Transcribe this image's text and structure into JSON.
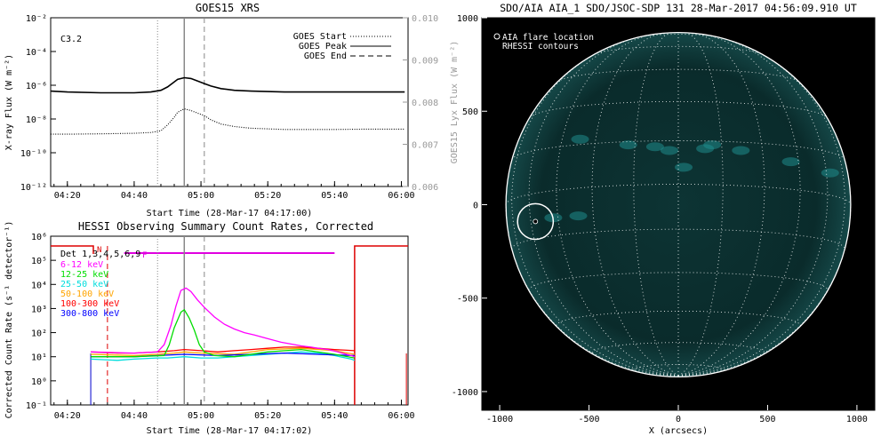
{
  "chart_data": [
    {
      "type": "line",
      "title": "GOES15 XRS",
      "xlabel": "Start Time (28-Mar-17 04:17:00)",
      "ylabel": "X-ray Flux (W m⁻²)",
      "ylabel_right": "GOES15 Lyx Flux (W m⁻²)",
      "annotation": "C3.2",
      "x_ticks": [
        "04:20",
        "04:40",
        "05:00",
        "05:20",
        "05:40",
        "06:00"
      ],
      "y_ticks": [
        "10⁻²",
        "10⁻⁴",
        "10⁻⁶",
        "10⁻⁸",
        "10⁻¹⁰",
        "10⁻¹²"
      ],
      "y_ticks_right": [
        "0.010",
        "0.009",
        "0.008",
        "0.007",
        "0.006"
      ],
      "yscale": "log",
      "ylim_exp": [
        -12,
        -2
      ],
      "xlim_min": [
        15,
        122
      ],
      "ylim_right": [
        0.006,
        0.01
      ],
      "legend": [
        {
          "label": "GOES Start",
          "style": "dotted"
        },
        {
          "label": "GOES Peak",
          "style": "solid"
        },
        {
          "label": "GOES End",
          "style": "dashed"
        }
      ],
      "event_lines_min": {
        "start": 47,
        "peak": 55,
        "end": 61
      },
      "series": [
        {
          "style": "solid",
          "log_values": [
            [
              15,
              -6.35
            ],
            [
              20,
              -6.4
            ],
            [
              30,
              -6.45
            ],
            [
              40,
              -6.45
            ],
            [
              45,
              -6.4
            ],
            [
              48,
              -6.3
            ],
            [
              50,
              -6.1
            ],
            [
              52,
              -5.8
            ],
            [
              53,
              -5.65
            ],
            [
              55,
              -5.55
            ],
            [
              57,
              -5.6
            ],
            [
              59,
              -5.75
            ],
            [
              61,
              -5.9
            ],
            [
              63,
              -6.05
            ],
            [
              66,
              -6.2
            ],
            [
              70,
              -6.3
            ],
            [
              75,
              -6.35
            ],
            [
              85,
              -6.4
            ],
            [
              100,
              -6.4
            ],
            [
              110,
              -6.4
            ],
            [
              121,
              -6.4
            ]
          ]
        },
        {
          "style": "dotted",
          "log_values": [
            [
              15,
              -8.9
            ],
            [
              20,
              -8.9
            ],
            [
              30,
              -8.88
            ],
            [
              40,
              -8.85
            ],
            [
              45,
              -8.8
            ],
            [
              48,
              -8.7
            ],
            [
              50,
              -8.35
            ],
            [
              52,
              -7.9
            ],
            [
              53,
              -7.6
            ],
            [
              55,
              -7.4
            ],
            [
              57,
              -7.5
            ],
            [
              59,
              -7.65
            ],
            [
              61,
              -7.8
            ],
            [
              63,
              -8.05
            ],
            [
              66,
              -8.3
            ],
            [
              70,
              -8.45
            ],
            [
              75,
              -8.55
            ],
            [
              85,
              -8.62
            ],
            [
              100,
              -8.62
            ],
            [
              110,
              -8.6
            ],
            [
              121,
              -8.6
            ]
          ]
        }
      ]
    },
    {
      "type": "line",
      "title": "HESSI Observing Summary Count Rates, Corrected",
      "xlabel": "Start Time (28-Mar-17 04:17:02)",
      "ylabel": "Corrected Count Rate (s⁻¹ detector⁻¹)",
      "x_ticks": [
        "04:20",
        "04:40",
        "05:00",
        "05:20",
        "05:40",
        "06:00"
      ],
      "y_ticks": [
        "10⁶",
        "10⁵",
        "10⁴",
        "10³",
        "10²",
        "10¹",
        "10⁰",
        "10⁻¹"
      ],
      "yscale": "log",
      "ylim_exp": [
        -1,
        6
      ],
      "xlim_min": [
        15,
        122
      ],
      "legend_title": "Det 1,3,4,5,6,9",
      "flag_labels": {
        "night": "N",
        "flare": "F"
      },
      "event_lines_min": {
        "start": 47,
        "peak": 55,
        "end": 61
      },
      "series": [
        {
          "name": "6-12 keV",
          "color": "#ff00ff",
          "log_values": [
            [
              27,
              1.2
            ],
            [
              40,
              1.15
            ],
            [
              47,
              1.2
            ],
            [
              49,
              1.5
            ],
            [
              51,
              2.3
            ],
            [
              52.5,
              3.1
            ],
            [
              54,
              3.75
            ],
            [
              55.5,
              3.85
            ],
            [
              57,
              3.7
            ],
            [
              59,
              3.35
            ],
            [
              61,
              3.05
            ],
            [
              64,
              2.65
            ],
            [
              67,
              2.35
            ],
            [
              70,
              2.15
            ],
            [
              73,
              2.0
            ],
            [
              76,
              1.9
            ],
            [
              80,
              1.75
            ],
            [
              84,
              1.6
            ],
            [
              88,
              1.5
            ],
            [
              90,
              1.45
            ],
            [
              93,
              1.4
            ],
            [
              95,
              1.35
            ],
            [
              98,
              1.3
            ],
            [
              101,
              1.2
            ],
            [
              105,
              1.05
            ],
            [
              106,
              1.0
            ]
          ]
        },
        {
          "name": "12-25 keV",
          "color": "#00dd00",
          "log_values": [
            [
              27,
              1.0
            ],
            [
              40,
              1.0
            ],
            [
              49,
              1.05
            ],
            [
              50.5,
              1.5
            ],
            [
              52,
              2.2
            ],
            [
              54,
              2.85
            ],
            [
              55,
              2.95
            ],
            [
              56.5,
              2.6
            ],
            [
              58,
              2.1
            ],
            [
              59.5,
              1.5
            ],
            [
              61,
              1.2
            ],
            [
              64,
              1.05
            ],
            [
              70,
              1.0
            ],
            [
              80,
              1.2
            ],
            [
              90,
              1.3
            ],
            [
              100,
              1.1
            ],
            [
              106,
              0.95
            ]
          ]
        },
        {
          "name": "25-50 keV",
          "color": "#00dddd",
          "log_values": [
            [
              27,
              0.9
            ],
            [
              35,
              0.85
            ],
            [
              40,
              0.9
            ],
            [
              47,
              0.95
            ],
            [
              50,
              0.95
            ],
            [
              55,
              1.0
            ],
            [
              60,
              0.95
            ],
            [
              65,
              0.95
            ],
            [
              70,
              1.0
            ],
            [
              75,
              1.05
            ],
            [
              80,
              1.1
            ],
            [
              85,
              1.15
            ],
            [
              90,
              1.2
            ],
            [
              95,
              1.15
            ],
            [
              100,
              1.05
            ],
            [
              105,
              0.9
            ],
            [
              106,
              0.85
            ]
          ]
        },
        {
          "name": "50-100 keV",
          "color": "#ffa500",
          "log_values": [
            [
              27,
              1.1
            ],
            [
              40,
              1.05
            ],
            [
              47,
              1.1
            ],
            [
              52,
              1.15
            ],
            [
              55,
              1.2
            ],
            [
              60,
              1.15
            ],
            [
              70,
              1.1
            ],
            [
              80,
              1.3
            ],
            [
              90,
              1.35
            ],
            [
              100,
              1.25
            ],
            [
              106,
              1.1
            ]
          ]
        },
        {
          "name": "100-300 keV",
          "color": "#ff0000",
          "log_values": [
            [
              27,
              1.2
            ],
            [
              35,
              1.15
            ],
            [
              40,
              1.15
            ],
            [
              47,
              1.2
            ],
            [
              52,
              1.25
            ],
            [
              55,
              1.3
            ],
            [
              60,
              1.25
            ],
            [
              65,
              1.2
            ],
            [
              70,
              1.25
            ],
            [
              75,
              1.3
            ],
            [
              80,
              1.35
            ],
            [
              85,
              1.4
            ],
            [
              90,
              1.4
            ],
            [
              95,
              1.35
            ],
            [
              100,
              1.3
            ],
            [
              106,
              1.25
            ]
          ]
        },
        {
          "name": "300-800 keV",
          "color": "#0000ff",
          "log_values": [
            [
              27,
              1.0
            ],
            [
              40,
              1.0
            ],
            [
              47,
              1.05
            ],
            [
              55,
              1.1
            ],
            [
              65,
              1.05
            ],
            [
              75,
              1.1
            ],
            [
              85,
              1.15
            ],
            [
              95,
              1.1
            ],
            [
              106,
              1.05
            ]
          ]
        }
      ]
    },
    {
      "type": "scatter",
      "title": "SDO/AIA AIA_1 SDO/JSOC-SDP 131 28-Mar-2017 04:56:09.910 UT",
      "xlabel": "X (arcsecs)",
      "ylabel": "",
      "x_ticks": [
        "-1000",
        "-500",
        "0",
        "500",
        "1000"
      ],
      "y_ticks": [
        "1000",
        "500",
        "0",
        "-500",
        "-1000"
      ],
      "xlim": [
        -1100,
        1100
      ],
      "ylim": [
        -1100,
        1000
      ],
      "solar_radius_arcsec": 965,
      "legend": [
        "AIA flare location",
        "RHESSI contours"
      ],
      "flare_location": [
        -800,
        -90
      ],
      "flare_circle_radius_arcsec": 100,
      "colors": {
        "disk": "#00ffff",
        "limb": "#ffffff",
        "grid": "#ffffff",
        "background": "#000000"
      }
    }
  ]
}
